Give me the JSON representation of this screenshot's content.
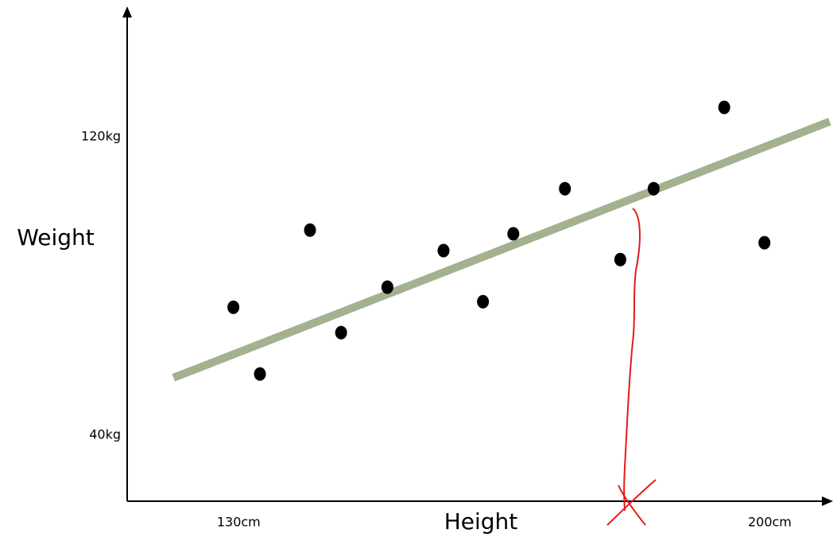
{
  "chart_data": {
    "type": "scatter",
    "x_label": "Height",
    "y_label": "Weight",
    "x": [
      129.3,
      132.8,
      139.4,
      143.5,
      149.6,
      157.0,
      162.2,
      166.2,
      173.0,
      180.3,
      184.7,
      194.0,
      199.3
    ],
    "y": [
      74.3,
      56.4,
      95.0,
      67.5,
      79.7,
      89.5,
      75.8,
      94.0,
      106.1,
      87.1,
      106.1,
      127.9,
      91.6
    ],
    "color": "#000000",
    "trend_line": {
      "x": [
        121.4,
        207.9
      ],
      "y": [
        55.4,
        124.1
      ],
      "color": "#a3b18f"
    },
    "xlim": [
      115.3,
      207.5
    ],
    "ylim": [
      22.3,
      153.5
    ],
    "xticks": [
      {
        "value": 130,
        "label": "130cm"
      },
      {
        "value": 200,
        "label": "200cm"
      }
    ],
    "yticks": [
      {
        "value": 40,
        "label": "40kg"
      },
      {
        "value": 120,
        "label": "120kg"
      }
    ],
    "grid": false
  }
}
